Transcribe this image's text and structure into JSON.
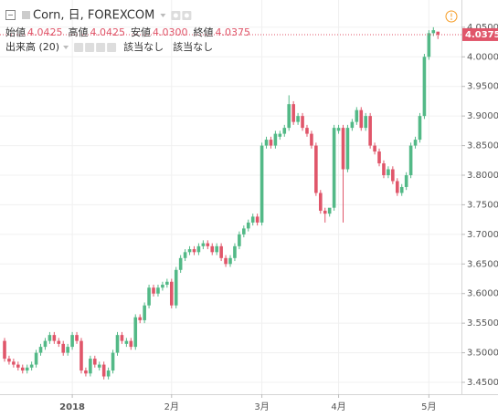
{
  "chart_data": {
    "type": "candlestick",
    "title": "Corn, 日, FOREXCOM",
    "ohlc_header": [
      {
        "label": "始値",
        "value": "4.0425"
      },
      {
        "label": "高値",
        "value": "4.0425"
      },
      {
        "label": "安値",
        "value": "4.0300"
      },
      {
        "label": "終値",
        "value": "4.0375"
      }
    ],
    "indicator": {
      "name": "出来高 (20)",
      "values": [
        "該当なし",
        "該当なし"
      ]
    },
    "up_color": "#53b987",
    "down_color": "#e0566a",
    "categories": [
      null,
      null,
      null,
      null,
      null,
      null,
      null,
      null,
      null,
      null,
      null,
      null,
      null,
      null,
      null,
      "2018",
      null,
      null,
      null,
      null,
      null,
      null,
      null,
      null,
      null,
      null,
      null,
      null,
      null,
      null,
      null,
      null,
      null,
      null,
      null,
      null,
      null,
      "2月",
      null,
      null,
      null,
      null,
      null,
      null,
      null,
      null,
      null,
      null,
      null,
      null,
      null,
      null,
      null,
      null,
      null,
      null,
      null,
      "3月",
      null,
      null,
      null,
      null,
      null,
      null,
      null,
      null,
      null,
      null,
      null,
      null,
      null,
      null,
      null,
      null,
      "4月",
      null,
      null,
      null,
      null,
      null,
      null,
      null,
      null,
      null,
      null,
      null,
      null,
      null,
      null,
      null,
      null,
      null,
      null,
      null,
      "5月",
      null,
      null
    ],
    "open": [
      3.52,
      3.49,
      3.485,
      3.48,
      3.475,
      3.47,
      3.475,
      3.48,
      3.5,
      3.51,
      3.52,
      3.53,
      3.52,
      3.515,
      3.5,
      3.51,
      3.53,
      3.52,
      3.47,
      3.465,
      3.49,
      3.475,
      3.48,
      3.46,
      3.47,
      3.5,
      3.53,
      3.515,
      3.52,
      3.51,
      3.56,
      3.555,
      3.58,
      3.61,
      3.6,
      3.61,
      3.615,
      3.62,
      3.58,
      3.64,
      3.66,
      3.67,
      3.675,
      3.67,
      3.68,
      3.685,
      3.68,
      3.67,
      3.68,
      3.66,
      3.65,
      3.66,
      3.68,
      3.7,
      3.71,
      3.72,
      3.73,
      3.72,
      3.85,
      3.86,
      3.85,
      3.865,
      3.87,
      3.88,
      3.92,
      3.89,
      3.9,
      3.88,
      3.87,
      3.85,
      3.77,
      3.74,
      3.735,
      3.745,
      3.875,
      3.88,
      3.81,
      3.88,
      3.89,
      3.91,
      3.88,
      3.9,
      3.85,
      3.84,
      3.82,
      3.8,
      3.81,
      3.79,
      3.77,
      3.78,
      3.8,
      3.85,
      3.86,
      3.9,
      4.0,
      4.04,
      4.0425
    ],
    "high": [
      3.525,
      3.495,
      3.49,
      3.485,
      3.48,
      3.48,
      3.485,
      3.505,
      3.515,
      3.525,
      3.535,
      3.535,
      3.525,
      3.52,
      3.515,
      3.535,
      3.535,
      3.525,
      3.475,
      3.495,
      3.495,
      3.485,
      3.485,
      3.475,
      3.505,
      3.535,
      3.535,
      3.525,
      3.525,
      3.565,
      3.565,
      3.585,
      3.615,
      3.615,
      3.615,
      3.62,
      3.625,
      3.625,
      3.645,
      3.665,
      3.675,
      3.68,
      3.68,
      3.685,
      3.69,
      3.69,
      3.685,
      3.685,
      3.685,
      3.665,
      3.665,
      3.685,
      3.705,
      3.715,
      3.725,
      3.735,
      3.735,
      3.855,
      3.865,
      3.865,
      3.875,
      3.875,
      3.885,
      3.935,
      3.925,
      3.905,
      3.905,
      3.885,
      3.875,
      3.855,
      3.775,
      3.745,
      3.74,
      3.885,
      3.885,
      3.885,
      3.885,
      3.895,
      3.915,
      3.915,
      3.905,
      3.905,
      3.855,
      3.845,
      3.825,
      3.815,
      3.815,
      3.795,
      3.785,
      3.805,
      3.855,
      3.865,
      3.905,
      4.005,
      4.045,
      4.05,
      4.0425
    ],
    "low": [
      3.485,
      3.48,
      3.475,
      3.47,
      3.465,
      3.465,
      3.47,
      3.475,
      3.495,
      3.505,
      3.515,
      3.515,
      3.51,
      3.495,
      3.495,
      3.505,
      3.515,
      3.465,
      3.46,
      3.46,
      3.475,
      3.47,
      3.455,
      3.455,
      3.465,
      3.495,
      3.515,
      3.51,
      3.505,
      3.505,
      3.55,
      3.55,
      3.575,
      3.595,
      3.595,
      3.605,
      3.61,
      3.575,
      3.575,
      3.635,
      3.655,
      3.665,
      3.665,
      3.665,
      3.675,
      3.675,
      3.665,
      3.665,
      3.655,
      3.645,
      3.645,
      3.655,
      3.675,
      3.695,
      3.705,
      3.715,
      3.715,
      3.715,
      3.845,
      3.845,
      3.845,
      3.86,
      3.865,
      3.875,
      3.885,
      3.885,
      3.875,
      3.865,
      3.845,
      3.765,
      3.735,
      3.72,
      3.73,
      3.74,
      3.87,
      3.72,
      3.805,
      3.875,
      3.885,
      3.875,
      3.875,
      3.845,
      3.835,
      3.815,
      3.795,
      3.795,
      3.785,
      3.765,
      3.765,
      3.775,
      3.795,
      3.845,
      3.855,
      3.895,
      3.995,
      4.035,
      4.03
    ],
    "close": [
      3.49,
      3.485,
      3.48,
      3.475,
      3.47,
      3.475,
      3.48,
      3.5,
      3.51,
      3.52,
      3.53,
      3.52,
      3.515,
      3.5,
      3.51,
      3.53,
      3.52,
      3.47,
      3.465,
      3.49,
      3.48,
      3.48,
      3.46,
      3.47,
      3.5,
      3.53,
      3.52,
      3.52,
      3.51,
      3.56,
      3.555,
      3.58,
      3.61,
      3.6,
      3.61,
      3.615,
      3.62,
      3.58,
      3.64,
      3.66,
      3.67,
      3.675,
      3.67,
      3.68,
      3.685,
      3.68,
      3.67,
      3.68,
      3.66,
      3.65,
      3.66,
      3.68,
      3.7,
      3.71,
      3.72,
      3.73,
      3.72,
      3.85,
      3.86,
      3.85,
      3.87,
      3.87,
      3.88,
      3.92,
      3.89,
      3.9,
      3.88,
      3.87,
      3.85,
      3.77,
      3.74,
      3.735,
      3.745,
      3.88,
      3.88,
      3.81,
      3.88,
      3.89,
      3.91,
      3.88,
      3.9,
      3.85,
      3.84,
      3.82,
      3.8,
      3.81,
      3.79,
      3.77,
      3.78,
      3.8,
      3.85,
      3.86,
      3.9,
      4.0,
      4.04,
      4.045,
      4.0375
    ],
    "ylim": [
      3.43,
      4.096
    ],
    "yticks": [
      {
        "value": 3.45,
        "label": "3.4500"
      },
      {
        "value": 3.5,
        "label": "3.5000"
      },
      {
        "value": 3.55,
        "label": "3.5500"
      },
      {
        "value": 3.6,
        "label": "3.6000"
      },
      {
        "value": 3.65,
        "label": "3.6500"
      },
      {
        "value": 3.7,
        "label": "3.7000"
      },
      {
        "value": 3.75,
        "label": "3.7500"
      },
      {
        "value": 3.8,
        "label": "3.8000"
      },
      {
        "value": 3.85,
        "label": "3.8500"
      },
      {
        "value": 3.9,
        "label": "3.9000"
      },
      {
        "value": 3.95,
        "label": "3.9500"
      },
      {
        "value": 4.0,
        "label": "4.0000"
      },
      {
        "value": 4.05,
        "label": "4.0500"
      }
    ],
    "grid": true
  }
}
